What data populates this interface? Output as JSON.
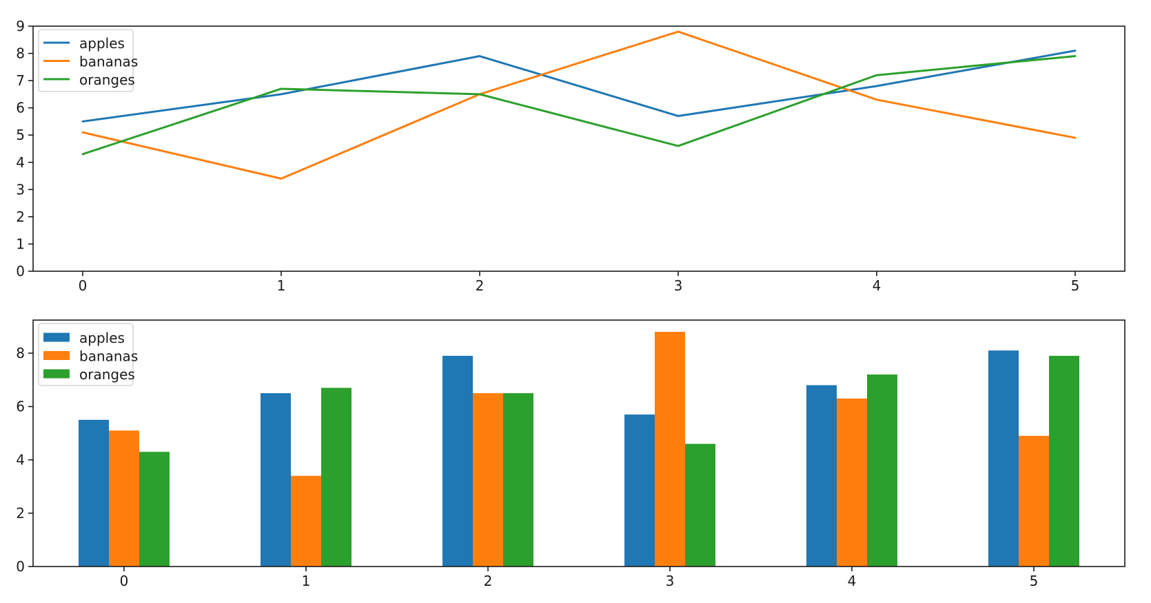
{
  "figure": {
    "background": "#ffffff",
    "text_color": "#1a1a1a",
    "spine_color": "#1a1a1a",
    "legend_border_color": "#cccccc",
    "legend_fill": "#ffffff"
  },
  "chart_data": [
    {
      "type": "line",
      "title": "",
      "xlabel": "",
      "ylabel": "",
      "x": [
        0,
        1,
        2,
        3,
        4,
        5
      ],
      "xticks": [
        "0",
        "1",
        "2",
        "3",
        "4",
        "5"
      ],
      "yticks": [
        "0",
        "1",
        "2",
        "3",
        "4",
        "5",
        "6",
        "7",
        "8",
        "9"
      ],
      "xlim": [
        -0.25,
        5.25
      ],
      "ylim": [
        0,
        9
      ],
      "grid": false,
      "legend_position": "upper-left",
      "series": [
        {
          "name": "apples",
          "color": "#1f77b4",
          "values": [
            5.5,
            6.5,
            7.9,
            5.7,
            6.8,
            8.1
          ]
        },
        {
          "name": "bananas",
          "color": "#ff7f0e",
          "values": [
            5.1,
            3.4,
            6.5,
            8.8,
            6.3,
            4.9
          ]
        },
        {
          "name": "oranges",
          "color": "#2ca02c",
          "values": [
            4.3,
            6.7,
            6.5,
            4.6,
            7.2,
            7.9
          ]
        }
      ]
    },
    {
      "type": "bar",
      "title": "",
      "xlabel": "",
      "ylabel": "",
      "categories": [
        "0",
        "1",
        "2",
        "3",
        "4",
        "5"
      ],
      "yticks": [
        "0",
        "2",
        "4",
        "6",
        "8"
      ],
      "xlim": [
        -0.5,
        5.5
      ],
      "ylim": [
        0,
        9.24
      ],
      "grid": false,
      "legend_position": "upper-left",
      "series": [
        {
          "name": "apples",
          "color": "#1f77b4",
          "values": [
            5.5,
            6.5,
            7.9,
            5.7,
            6.8,
            8.1
          ]
        },
        {
          "name": "bananas",
          "color": "#ff7f0e",
          "values": [
            5.1,
            3.4,
            6.5,
            8.8,
            6.3,
            4.9
          ]
        },
        {
          "name": "oranges",
          "color": "#2ca02c",
          "values": [
            4.3,
            6.7,
            6.5,
            4.6,
            7.2,
            7.9
          ]
        }
      ]
    }
  ]
}
